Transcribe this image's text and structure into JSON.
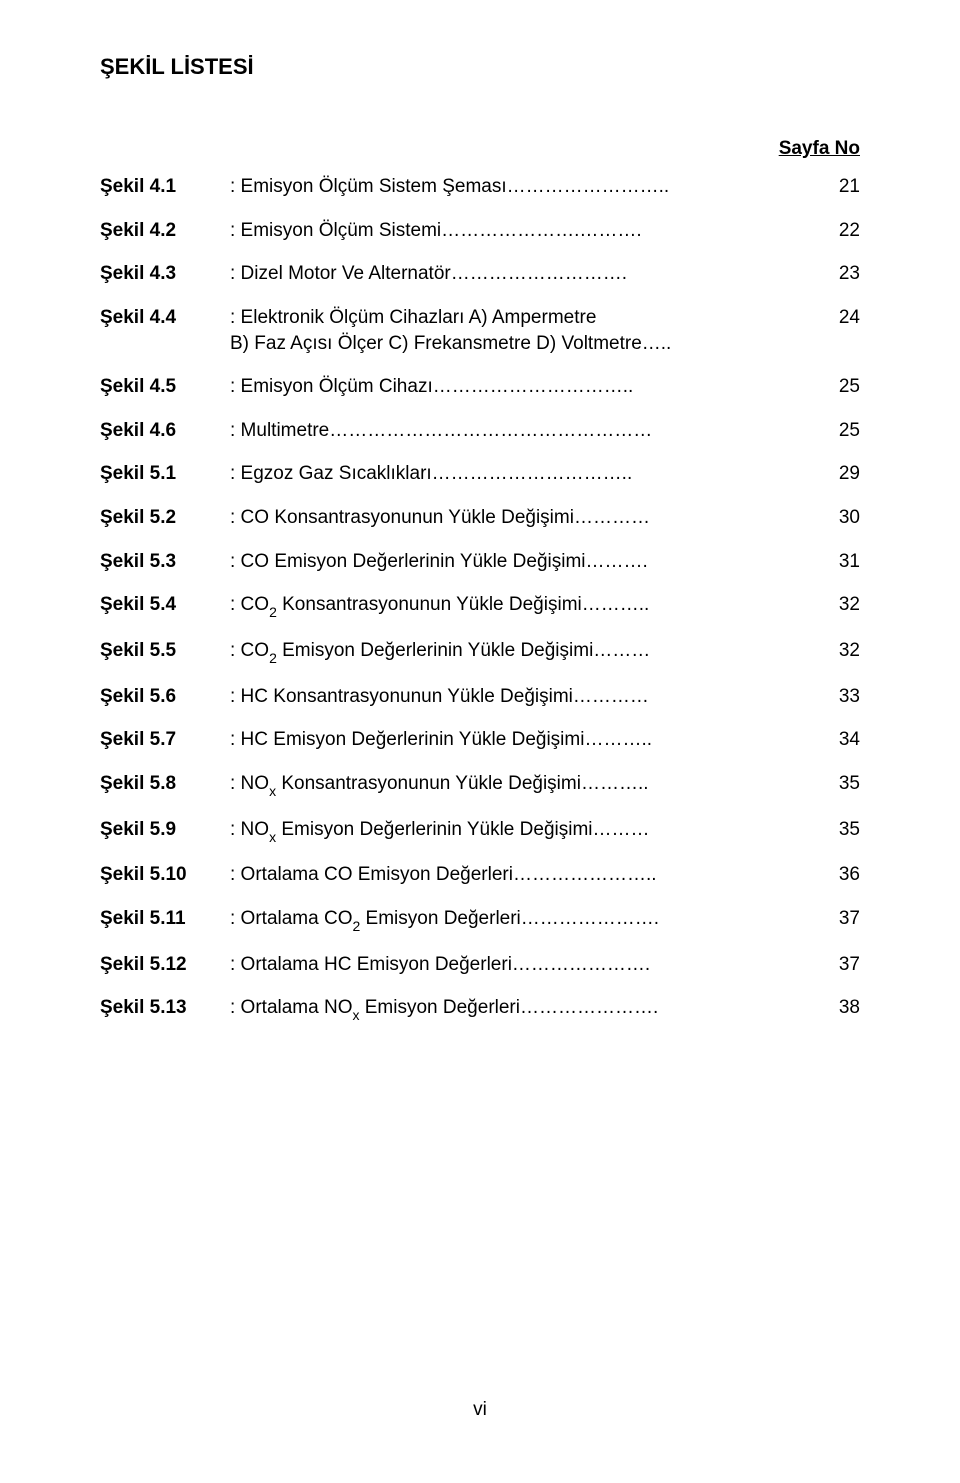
{
  "heading": "ŞEKİL LİSTESİ",
  "page_no_label": "Sayfa No",
  "items": [
    {
      "label": "Şekil 4.1",
      "desc": ": Emisyon Ölçüm Sistem Şeması……………………..",
      "page": "21"
    },
    {
      "label": "Şekil 4.2",
      "desc": ": Emisyon Ölçüm Sistemi………………….……….",
      "page": "22"
    },
    {
      "label": "Şekil 4.3",
      "desc": ": Dizel Motor Ve Alternatör……………………….",
      "page": "23"
    },
    {
      "label": "Şekil 4.4",
      "desc": ": Elektronik Ölçüm Cihazları A) Ampermetre\nB) Faz Açısı Ölçer C) Frekansmetre D) Voltmetre…..",
      "page": "24"
    },
    {
      "label": "Şekil 4.5",
      "desc": ": Emisyon Ölçüm Cihazı…………………………..",
      "page": "25"
    },
    {
      "label": "Şekil 4.6",
      "desc": ": Multimetre……………………………………………",
      "page": "25"
    },
    {
      "label": "Şekil 5.1",
      "desc": ": Egzoz Gaz Sıcaklıkları…………………………..",
      "page": "29"
    },
    {
      "label": "Şekil 5.2",
      "desc": ": CO Konsantrasyonunun Yükle Değişimi…………",
      "page": "30"
    },
    {
      "label": "Şekil 5.3",
      "desc": ": CO Emisyon Değerlerinin Yükle Değişimi……….",
      "page": "31"
    },
    {
      "label": "Şekil 5.4",
      "desc": ": CO<sub>2</sub> Konsantrasyonunun Yükle Değişimi………..",
      "page": "32"
    },
    {
      "label": "Şekil 5.5",
      "desc": ": CO<sub>2</sub> Emisyon Değerlerinin Yükle Değişimi………",
      "page": "32"
    },
    {
      "label": "Şekil 5.6",
      "desc": ": HC Konsantrasyonunun Yükle Değişimi…………",
      "page": "33"
    },
    {
      "label": "Şekil 5.7",
      "desc": ": HC Emisyon Değerlerinin Yükle Değişimi………..",
      "page": "34"
    },
    {
      "label": "Şekil 5.8",
      "desc": ": NO<sub>x</sub> Konsantrasyonunun Yükle Değişimi………..",
      "page": "35"
    },
    {
      "label": "Şekil 5.9",
      "desc": ": NO<sub>x</sub> Emisyon Değerlerinin Yükle Değişimi………",
      "page": "35"
    },
    {
      "label": "Şekil 5.10",
      "desc": ": Ortalama CO Emisyon Değerleri…………………..",
      "page": "36"
    },
    {
      "label": "Şekil 5.11",
      "desc": ": Ortalama CO<sub>2</sub> Emisyon Değerleri………………….",
      "page": "37"
    },
    {
      "label": "Şekil 5.12",
      "desc": ": Ortalama HC Emisyon Değerleri………………….",
      "page": "37"
    },
    {
      "label": "Şekil 5.13",
      "desc": ": Ortalama NO<sub>x</sub> Emisyon Değerleri………………….",
      "page": "38"
    }
  ],
  "footer_page": "vi"
}
